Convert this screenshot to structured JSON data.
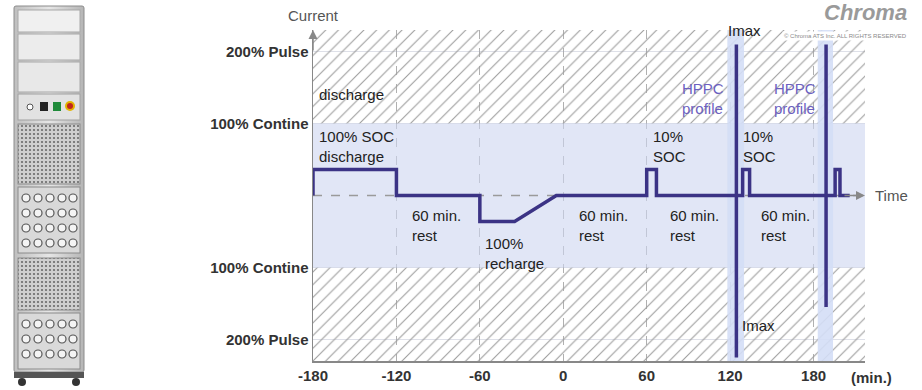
{
  "chart_data": {
    "type": "line",
    "x_label": "(min.)",
    "y_label": "Current",
    "time_label": "Time",
    "x": [
      -180,
      -180,
      -120,
      -120,
      -60,
      -60,
      -35,
      -5,
      60,
      60,
      67,
      67,
      124.5,
      124.5,
      124.5,
      124.5,
      129,
      129,
      134,
      134,
      189,
      189,
      189,
      189,
      195.5,
      195.5,
      199,
      199,
      206
    ],
    "values": [
      0,
      0.36,
      0.36,
      0,
      0,
      -0.36,
      -0.36,
      0,
      0,
      0.36,
      0.36,
      0,
      0,
      2.1,
      -2.25,
      0,
      0,
      0.36,
      0.36,
      0,
      0,
      2.1,
      -1.55,
      0,
      0,
      0.36,
      0.36,
      0,
      0
    ],
    "color": "#3b3385",
    "xlim": [
      -180,
      217
    ],
    "xticks": [
      -180,
      -120,
      -60,
      0,
      60,
      120,
      180
    ],
    "ylim": [
      -2.3,
      2.3
    ],
    "yticks": [
      {
        "value": -2,
        "label": "200% Pulse"
      },
      {
        "value": -1,
        "label": "100% Contine"
      },
      {
        "value": 1,
        "label": "100% Contine"
      },
      {
        "value": 2,
        "label": "200% Pulse"
      }
    ],
    "grid": true,
    "continuous_band": [
      -1,
      1
    ],
    "highlight_ranges": [
      [
        118,
        130
      ],
      [
        183,
        194
      ]
    ],
    "annotations": [
      {
        "text": [
          "discharge"
        ],
        "x": -177,
        "y": 1.4
      },
      {
        "text": [
          "100% SOC",
          "discharge"
        ],
        "x": -177,
        "y": 0.68
      },
      {
        "text": [
          "60 min.",
          "rest"
        ],
        "x": -110,
        "y": -0.42
      },
      {
        "text": [
          "100%",
          "recharge"
        ],
        "x": -58,
        "y": -0.8
      },
      {
        "text": [
          "60 min.",
          "rest"
        ],
        "x": 10,
        "y": -0.42
      },
      {
        "text": [
          "10%",
          "SOC"
        ],
        "x": 63,
        "y": 0.68
      },
      {
        "text": [
          "60 min.",
          "rest"
        ],
        "x": 75,
        "y": -0.42
      },
      {
        "text": [
          "HPPC",
          "profile"
        ],
        "x": 84,
        "y": 1.35,
        "color": "#6c5fc0"
      },
      {
        "text": [
          "10%",
          "SOC"
        ],
        "x": 127.5,
        "y": 0.68
      },
      {
        "text": [
          "60 min.",
          "rest"
        ],
        "x": 141,
        "y": -0.42
      },
      {
        "text": [
          "HPPC",
          "profile"
        ],
        "x": 150,
        "y": 1.35,
        "color": "#6c5fc0"
      },
      {
        "text": [
          "Imax"
        ],
        "x": 117,
        "y": 2.3
      },
      {
        "text": [
          "Imax"
        ],
        "x": 127,
        "y": -1.8
      }
    ],
    "logo": "Chroma",
    "copyright": "© Chroma ATS Inc. ALL RIGHTS RESERVED"
  }
}
